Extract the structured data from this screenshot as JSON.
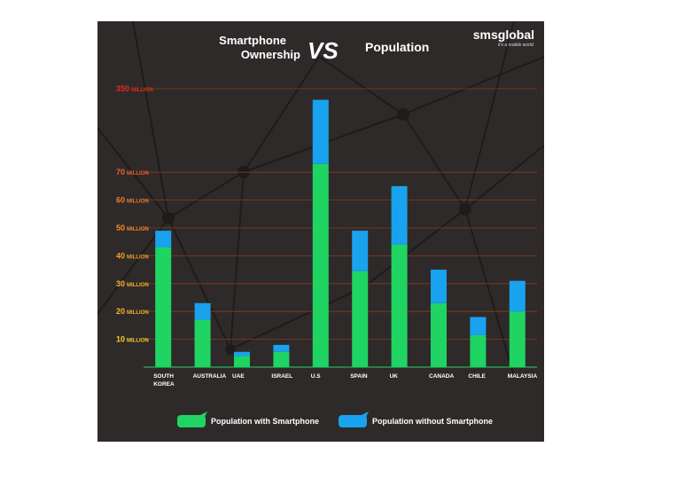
{
  "chart_data": {
    "type": "bar",
    "stacked": true,
    "title_left_line1": "Smartphone",
    "title_left_line2": "Ownership",
    "title_vs": "VS",
    "title_right": "Population",
    "brand": "smsglobal",
    "brand_tagline": "it's a mobile world.",
    "categories": [
      "SOUTH KOREA",
      "AUSTRALIA",
      "UAE",
      "ISRAEL",
      "U.S",
      "SPAIN",
      "UK",
      "CANADA",
      "CHILE",
      "MALAYSIA"
    ],
    "category_lines": [
      [
        "SOUTH",
        "KOREA"
      ],
      [
        "AUSTRALIA"
      ],
      [
        "UAE"
      ],
      [
        "ISRAEL"
      ],
      [
        "U.S"
      ],
      [
        "SPAIN"
      ],
      [
        "UK"
      ],
      [
        "CANADA"
      ],
      [
        "CHILE"
      ],
      [
        "MALAYSIA"
      ]
    ],
    "series": [
      {
        "name": "Population with Smartphone",
        "color": "#1fd463",
        "values": [
          43,
          17,
          4,
          5.5,
          73,
          34.5,
          44,
          23,
          11.5,
          20
        ]
      },
      {
        "name": "Population without Smartphone",
        "color": "#19a2ee",
        "values": [
          6,
          6,
          1.5,
          2.5,
          23,
          14.5,
          21,
          12,
          6.5,
          11
        ]
      }
    ],
    "y_ticks": [
      {
        "value": 10,
        "number": "10",
        "unit": "MILLION",
        "color": "#f2cf2c"
      },
      {
        "value": 20,
        "number": "20",
        "unit": "MILLION",
        "color": "#f2b22a"
      },
      {
        "value": 30,
        "number": "30",
        "unit": "MILLION",
        "color": "#f2b22a"
      },
      {
        "value": 40,
        "number": "40",
        "unit": "MILLION",
        "color": "#f29a2a"
      },
      {
        "value": 50,
        "number": "50",
        "unit": "MILLION",
        "color": "#f28a2a"
      },
      {
        "value": 60,
        "number": "60",
        "unit": "MILLION",
        "color": "#f07a2a"
      },
      {
        "value": 70,
        "number": "70",
        "unit": "MILLION",
        "color": "#ee5a28"
      },
      {
        "value": 350,
        "number": "350",
        "unit": "MILLION",
        "color": "#e8281e",
        "broken_axis": true
      }
    ],
    "axis_break": {
      "real_value": 350,
      "drawn_as": 100
    },
    "ylim": [
      0,
      100
    ],
    "legend_position": "bottom",
    "colors": {
      "background": "#2e2a29",
      "grid": "#8a3b1e",
      "text": "#ffffff"
    }
  }
}
